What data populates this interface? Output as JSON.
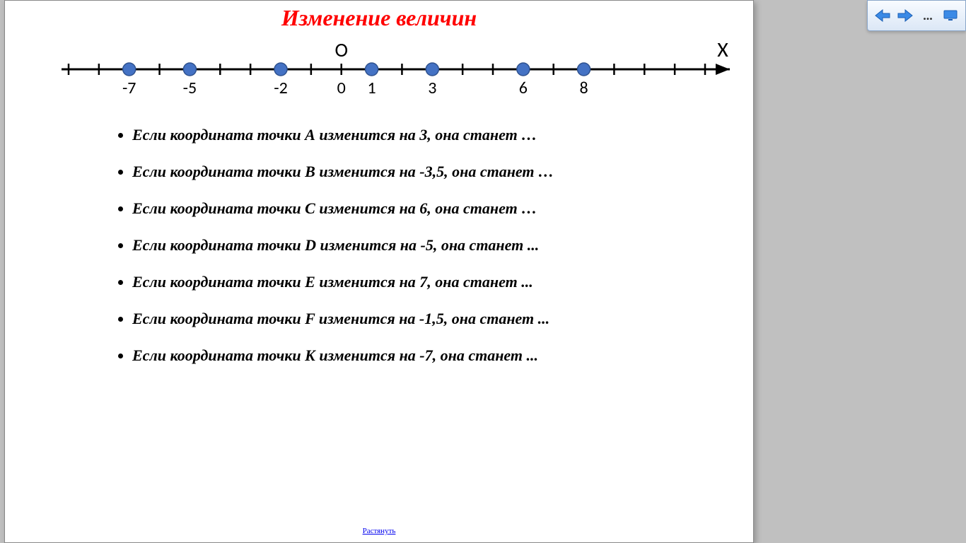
{
  "title": {
    "text": "Изменение величин",
    "color": "#ff0000",
    "fontsize": 32
  },
  "numberline": {
    "origin_label": "O",
    "axis_label": "X",
    "range_min": -9,
    "range_max": 12,
    "tick_step": 1,
    "axis_color": "#000000",
    "point_fill": "#4472c4",
    "point_stroke": "#2f528f",
    "point_radius": 9,
    "label_fontsize": 24,
    "labeled_ticks": [
      -7,
      -5,
      -2,
      0,
      1,
      3,
      6,
      8
    ],
    "points": [
      -7,
      -5,
      -2,
      1,
      3,
      6,
      8
    ]
  },
  "bullets": {
    "fontsize": 22,
    "color": "#000000",
    "items": [
      "Если координата точки А изменится на 3, она станет …",
      "Если координата точки В изменится на -3,5, она станет …",
      "Если координата точки С изменится на 6, она станет …",
      "Если координата точки D изменится на -5, она станет ...",
      "Если координата точки E изменится на 7, она станет ...",
      "Если координата точки F изменится на -1,5, она станет ...",
      "Если координата точки K изменится на -7, она станет ..."
    ]
  },
  "bottom_link": {
    "text": "Растянуть",
    "color": "#0000ee"
  },
  "toolbar": {
    "back": "←",
    "forward": "→",
    "menu": "...",
    "present": "▣"
  }
}
